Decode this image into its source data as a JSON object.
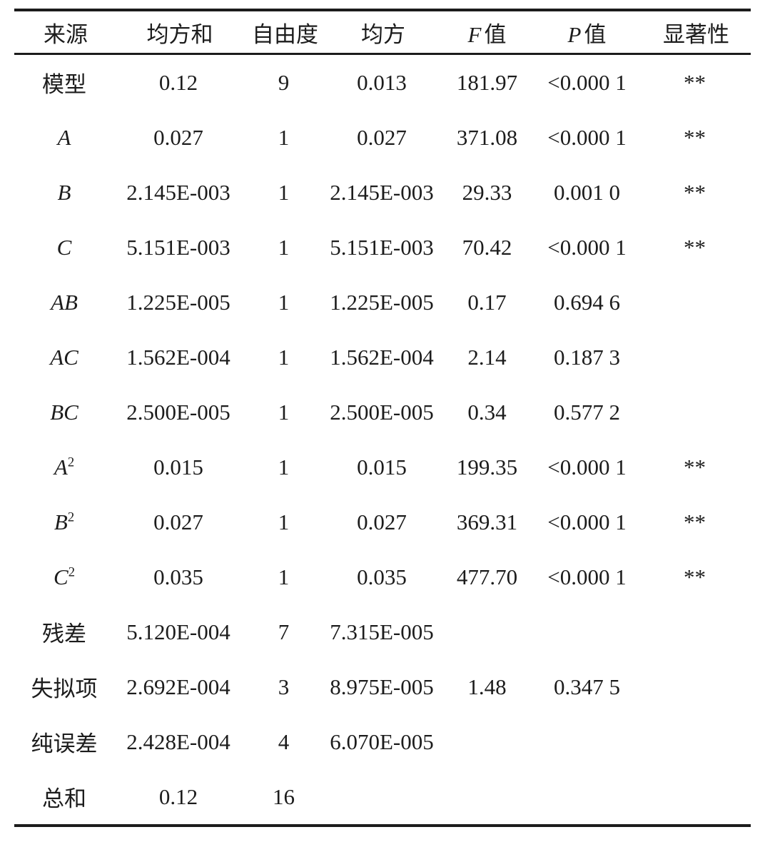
{
  "table": {
    "kind": "anova-three-line-table",
    "text_color": "#1c1c1c",
    "rule_color": "#1c1c1c",
    "headers": [
      {
        "pre": "",
        "label": "来源"
      },
      {
        "pre": "",
        "label": "均方和"
      },
      {
        "pre": "",
        "label": "自由度"
      },
      {
        "pre": "",
        "label": "均方"
      },
      {
        "pre": "F",
        "label": "值"
      },
      {
        "pre": "P",
        "label": "值"
      },
      {
        "pre": "",
        "label": "显著性"
      }
    ],
    "rows": [
      {
        "source": "模型",
        "source_sup": "",
        "italic": false,
        "ss": "0.12",
        "df": "9",
        "ms": "0.013",
        "f": "181.97",
        "p": "<0.000 1",
        "sig": "**"
      },
      {
        "source": "A",
        "source_sup": "",
        "italic": true,
        "ss": "0.027",
        "df": "1",
        "ms": "0.027",
        "f": "371.08",
        "p": "<0.000 1",
        "sig": "**"
      },
      {
        "source": "B",
        "source_sup": "",
        "italic": true,
        "ss": "2.145E-003",
        "df": "1",
        "ms": "2.145E-003",
        "f": "29.33",
        "p": "0.001 0",
        "sig": "**"
      },
      {
        "source": "C",
        "source_sup": "",
        "italic": true,
        "ss": "5.151E-003",
        "df": "1",
        "ms": "5.151E-003",
        "f": "70.42",
        "p": "<0.000 1",
        "sig": "**"
      },
      {
        "source": "AB",
        "source_sup": "",
        "italic": true,
        "ss": "1.225E-005",
        "df": "1",
        "ms": "1.225E-005",
        "f": "0.17",
        "p": "0.694 6",
        "sig": ""
      },
      {
        "source": "AC",
        "source_sup": "",
        "italic": true,
        "ss": "1.562E-004",
        "df": "1",
        "ms": "1.562E-004",
        "f": "2.14",
        "p": "0.187 3",
        "sig": ""
      },
      {
        "source": "BC",
        "source_sup": "",
        "italic": true,
        "ss": "2.500E-005",
        "df": "1",
        "ms": "2.500E-005",
        "f": "0.34",
        "p": "0.577 2",
        "sig": ""
      },
      {
        "source": "A",
        "source_sup": "2",
        "italic": true,
        "ss": "0.015",
        "df": "1",
        "ms": "0.015",
        "f": "199.35",
        "p": "<0.000 1",
        "sig": "**"
      },
      {
        "source": "B",
        "source_sup": "2",
        "italic": true,
        "ss": "0.027",
        "df": "1",
        "ms": "0.027",
        "f": "369.31",
        "p": "<0.000 1",
        "sig": "**"
      },
      {
        "source": "C",
        "source_sup": "2",
        "italic": true,
        "ss": "0.035",
        "df": "1",
        "ms": "0.035",
        "f": "477.70",
        "p": "<0.000 1",
        "sig": "**"
      },
      {
        "source": "残差",
        "source_sup": "",
        "italic": false,
        "ss": "5.120E-004",
        "df": "7",
        "ms": "7.315E-005",
        "f": "",
        "p": "",
        "sig": ""
      },
      {
        "source": "失拟项",
        "source_sup": "",
        "italic": false,
        "ss": "2.692E-004",
        "df": "3",
        "ms": "8.975E-005",
        "f": "1.48",
        "p": "0.347 5",
        "sig": ""
      },
      {
        "source": "纯误差",
        "source_sup": "",
        "italic": false,
        "ss": "2.428E-004",
        "df": "4",
        "ms": "6.070E-005",
        "f": "",
        "p": "",
        "sig": ""
      },
      {
        "source": "总和",
        "source_sup": "",
        "italic": false,
        "ss": "0.12",
        "df": "16",
        "ms": "",
        "f": "",
        "p": "",
        "sig": ""
      }
    ]
  }
}
